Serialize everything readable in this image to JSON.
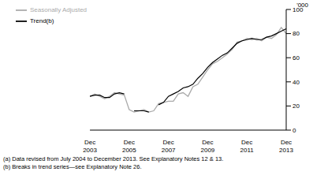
{
  "chart_data": {
    "type": "line",
    "y_label": "'000",
    "categories": [
      "Dec 2003",
      null,
      null,
      null,
      null,
      null,
      null,
      null,
      "Dec 2005",
      null,
      null,
      null,
      null,
      null,
      null,
      null,
      "Dec 2007",
      null,
      null,
      null,
      null,
      null,
      null,
      null,
      "Dec 2009",
      null,
      null,
      null,
      null,
      null,
      null,
      null,
      "Dec 2011",
      null,
      null,
      null,
      null,
      null,
      null,
      null,
      "Dec 2013"
    ],
    "series": [
      {
        "name": "Trend(b)",
        "color": "#000000",
        "values": [
          28,
          29,
          29,
          27,
          27,
          30,
          31,
          30,
          null,
          16,
          16,
          16,
          15,
          null,
          21,
          23,
          28,
          30,
          32,
          35,
          36,
          38,
          43,
          47,
          52,
          56,
          59,
          62,
          64,
          68,
          72,
          74,
          75,
          76,
          75,
          75,
          77,
          78,
          80,
          82,
          84
        ]
      },
      {
        "name": "Seasonally Adjusted",
        "color": "#aaaaaa",
        "values": [
          28,
          30,
          28,
          26,
          28,
          31,
          30,
          29,
          17,
          15,
          16,
          17,
          15,
          16,
          22,
          23,
          24,
          24,
          30,
          31,
          28,
          36,
          38,
          44,
          50,
          55,
          57,
          60,
          63,
          67,
          73,
          74,
          76,
          75,
          76,
          74,
          77,
          76,
          79,
          85,
          80
        ]
      }
    ],
    "ylim": [
      0,
      100
    ],
    "yticks": [
      0,
      20,
      40,
      60,
      80,
      100
    ],
    "notes": [
      "(a) Data revised from July 2004 to December 2013. See Explanatory Notes 12 & 13.",
      "(b) Breaks in trend series—see Explanatory Note 26."
    ]
  }
}
